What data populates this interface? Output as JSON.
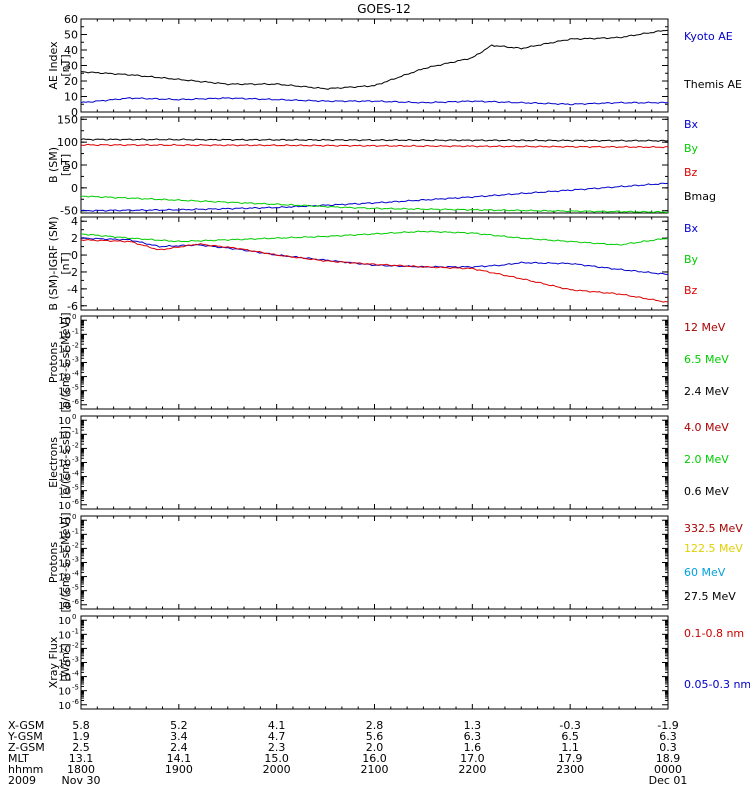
{
  "title": "GOES-12",
  "chart_data": {
    "type": "line",
    "title": "GOES-12",
    "x_ticks": [
      "1800",
      "1900",
      "2000",
      "2100",
      "2200",
      "2300",
      "0000"
    ],
    "x_range_hours": [
      18,
      24
    ],
    "panels": [
      {
        "id": "ae",
        "ylabel": [
          "AE Index",
          "[nT]"
        ],
        "ylim": [
          0,
          60
        ],
        "log": false,
        "ticks": [
          0,
          10,
          20,
          30,
          40,
          50,
          60
        ],
        "series": [
          {
            "name": "Kyoto AE",
            "color": "#0000cc",
            "hours": [
              18,
              18.5,
              19,
              19.5,
              20,
              20.5,
              21,
              21.5,
              22,
              22.5,
              23,
              23.5,
              24
            ],
            "values": [
              6,
              9,
              8,
              9,
              8,
              7,
              7,
              6,
              7,
              6,
              5,
              6,
              6
            ]
          },
          {
            "name": "Themis AE",
            "color": "#000000",
            "hours": [
              18,
              18.5,
              19,
              19.5,
              20,
              20.5,
              21,
              21.5,
              22,
              22.2,
              22.5,
              23,
              23.5,
              24
            ],
            "values": [
              26,
              24,
              21,
              18,
              18,
              15,
              17,
              28,
              35,
              43,
              41,
              47,
              48,
              53
            ]
          }
        ]
      },
      {
        "id": "b",
        "ylabel": [
          "B (SM)",
          "[nT]"
        ],
        "ylim": [
          -55,
          155
        ],
        "log": false,
        "ticks": [
          -50,
          0,
          50,
          100,
          150
        ],
        "series": [
          {
            "name": "Bx",
            "color": "#0000cc",
            "hours": [
              18,
              19,
              20,
              21,
              22,
              23,
              24
            ],
            "values": [
              -50,
              -48,
              -43,
              -33,
              -20,
              -5,
              10
            ]
          },
          {
            "name": "By",
            "color": "#00cc00",
            "hours": [
              18,
              19,
              20,
              20.6,
              21,
              22,
              23,
              24
            ],
            "values": [
              -18,
              -27,
              -36,
              -42,
              -45,
              -48,
              -51,
              -53
            ]
          },
          {
            "name": "Bz",
            "color": "#dd0000",
            "hours": [
              18,
              20,
              22,
              24
            ],
            "values": [
              94,
              93,
              91,
              89
            ]
          },
          {
            "name": "Bmag",
            "color": "#000000",
            "hours": [
              18,
              20,
              22,
              24
            ],
            "values": [
              106,
              105,
              104,
              103
            ]
          }
        ]
      },
      {
        "id": "db",
        "ylabel": [
          "B (SM)-IGRF (SM)",
          "[nT]"
        ],
        "ylim": [
          -6.5,
          4.5
        ],
        "log": false,
        "ticks": [
          -6,
          -4,
          -2,
          0,
          2,
          4
        ],
        "series": [
          {
            "name": "Bx",
            "color": "#0000cc",
            "hours": [
              18,
              18.5,
              18.8,
              19.2,
              19.6,
              20,
              20.5,
              21,
              21.5,
              22,
              22.3,
              22.5,
              23,
              23.5,
              24
            ],
            "values": [
              2,
              1.8,
              1.0,
              1.2,
              0.7,
              0,
              -0.6,
              -1.2,
              -1.4,
              -1.4,
              -1.2,
              -0.9,
              -1.0,
              -1.7,
              -2.3
            ]
          },
          {
            "name": "By",
            "color": "#00cc00",
            "hours": [
              18,
              18.5,
              19,
              19.5,
              20,
              20.5,
              21,
              21.5,
              22,
              22.5,
              23,
              23.5,
              24
            ],
            "values": [
              2.5,
              2.0,
              1.6,
              1.8,
              2.0,
              2.2,
              2.5,
              2.8,
              2.6,
              2.0,
              1.6,
              1.2,
              2.0
            ]
          },
          {
            "name": "Bz",
            "color": "#dd0000",
            "hours": [
              18,
              18.5,
              18.8,
              19.2,
              19.6,
              20,
              20.5,
              21,
              21.5,
              22,
              22.5,
              23,
              23.5,
              24
            ],
            "values": [
              1.8,
              1.6,
              0.6,
              1.3,
              0.8,
              0,
              -0.7,
              -1.1,
              -1.4,
              -1.6,
              -2.8,
              -4.1,
              -4.6,
              -5.6
            ]
          }
        ]
      },
      {
        "id": "protons1",
        "ylabel": [
          "Protons",
          "[p/(cm²-s-sr-MeV)]"
        ],
        "ylim": [
          -6.3,
          0.3
        ],
        "log": true,
        "ticks": [
          -6,
          -5,
          -4,
          -3,
          -2,
          -1,
          0
        ],
        "legend": [
          {
            "name": "12 MeV",
            "color": "#aa0000"
          },
          {
            "name": "6.5 MeV",
            "color": "#00cc00"
          },
          {
            "name": "2.4 MeV",
            "color": "#000000"
          }
        ]
      },
      {
        "id": "electrons",
        "ylabel": [
          "Electrons",
          "[e/(cm²-s-sr)]"
        ],
        "ylim": [
          -6.3,
          0.3
        ],
        "log": true,
        "ticks": [
          -6,
          -5,
          -4,
          -3,
          -2,
          -1,
          0
        ],
        "legend": [
          {
            "name": "4.0 MeV",
            "color": "#aa0000"
          },
          {
            "name": "2.0 MeV",
            "color": "#00cc00"
          },
          {
            "name": "0.6 MeV",
            "color": "#000000"
          }
        ]
      },
      {
        "id": "protons2",
        "ylabel": [
          "Protons",
          "[p/(cm²-s-sr-MeV)]"
        ],
        "ylim": [
          -6.3,
          0.3
        ],
        "log": true,
        "ticks": [
          -6,
          -5,
          -4,
          -3,
          -2,
          -1,
          0
        ],
        "legend": [
          {
            "name": "332.5 MeV",
            "color": "#aa0000"
          },
          {
            "name": "122.5 MeV",
            "color": "#e0d000"
          },
          {
            "name": "60 MeV",
            "color": "#00a0e0"
          },
          {
            "name": "27.5 MeV",
            "color": "#000000"
          }
        ]
      },
      {
        "id": "xray",
        "ylabel": [
          "Xray Flux",
          "[W/m²]"
        ],
        "ylim": [
          -6.3,
          0.3
        ],
        "log": true,
        "ticks": [
          -6,
          -5,
          -4,
          -3,
          -2,
          -1,
          0
        ],
        "legend": [
          {
            "name": "0.1-0.8 nm",
            "color": "#cc0000"
          },
          {
            "name": "0.05-0.3 nm",
            "color": "#0000cc"
          }
        ]
      }
    ]
  },
  "ephemeris": {
    "rows": [
      {
        "label": "X-GSM",
        "values": [
          "5.8",
          "5.2",
          "4.1",
          "2.8",
          "1.3",
          "-0.3",
          "-1.9"
        ]
      },
      {
        "label": "Y-GSM",
        "values": [
          "1.9",
          "3.4",
          "4.7",
          "5.6",
          "6.3",
          "6.5",
          "6.3"
        ]
      },
      {
        "label": "Z-GSM",
        "values": [
          "2.5",
          "2.4",
          "2.3",
          "2.0",
          "1.6",
          "1.1",
          "0.3"
        ]
      },
      {
        "label": "MLT",
        "values": [
          "13.1",
          "14.1",
          "15.0",
          "16.0",
          "17.0",
          "17.9",
          "18.9"
        ]
      },
      {
        "label": "hhmm",
        "values": [
          "1800",
          "1900",
          "2000",
          "2100",
          "2200",
          "2300",
          "0000"
        ]
      }
    ],
    "year": "2009",
    "date_start": "Nov 30",
    "date_end": "Dec 01"
  }
}
